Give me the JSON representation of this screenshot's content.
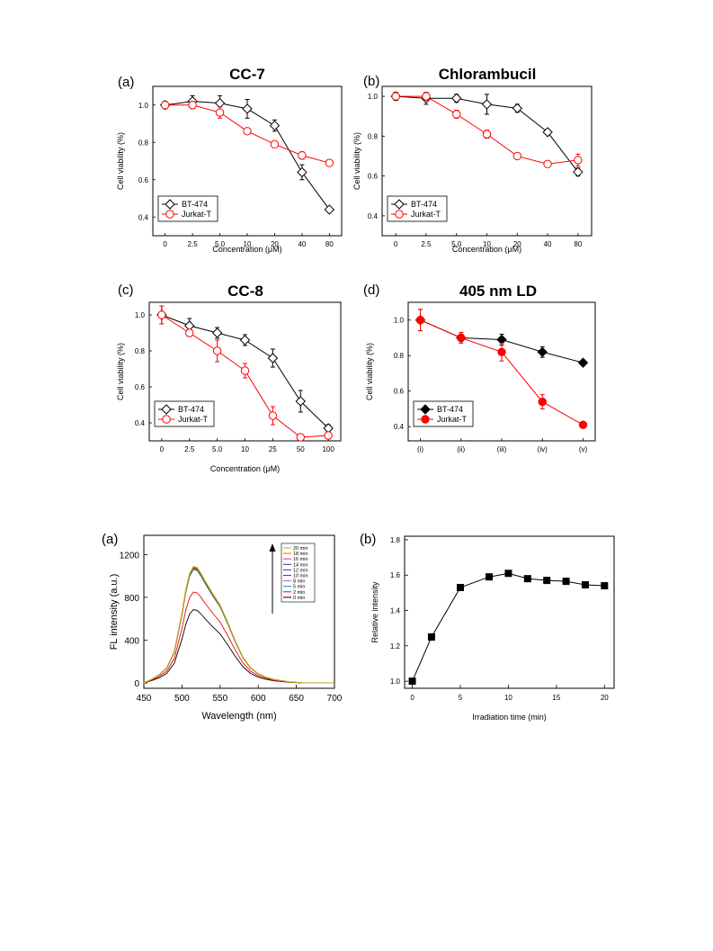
{
  "chart_data": [
    {
      "id": "cc7",
      "panel_label": "(a)",
      "type": "line",
      "title": "CC-7",
      "xlabel": "Concentration (μM)",
      "ylabel": "Cell viability (%)",
      "categories": [
        "0",
        "2.5",
        "5.0",
        "10",
        "20",
        "40",
        "80"
      ],
      "ylim": [
        0.3,
        1.1
      ],
      "yticks": [
        "0.4",
        "0.6",
        "0.8",
        "1.0"
      ],
      "legend_position": "bottom-left",
      "series": [
        {
          "name": "BT-474",
          "values": [
            1.0,
            1.02,
            1.01,
            0.98,
            0.89,
            0.64,
            0.44
          ],
          "errors": [
            0.02,
            0.03,
            0.04,
            0.05,
            0.03,
            0.04,
            0.01
          ],
          "color": "#000000",
          "marker": "diamond-open"
        },
        {
          "name": "Jurkat-T",
          "values": [
            1.0,
            1.0,
            0.96,
            0.86,
            0.79,
            0.73,
            0.69
          ],
          "errors": [
            0.02,
            0.02,
            0.03,
            0.01,
            0.01,
            0.02,
            0.01
          ],
          "color": "#ff0000",
          "marker": "circle-open"
        }
      ]
    },
    {
      "id": "chlorambucil",
      "panel_label": "(b)",
      "type": "line",
      "title": "Chlorambucil",
      "xlabel": "Concentration (μM)",
      "ylabel": "Cell viability (%)",
      "categories": [
        "0",
        "2.5",
        "5.0",
        "10",
        "20",
        "40",
        "80"
      ],
      "ylim": [
        0.3,
        1.05
      ],
      "yticks": [
        "0.4",
        "0.6",
        "0.8",
        "1.0"
      ],
      "legend_position": "bottom-left",
      "series": [
        {
          "name": "BT-474",
          "values": [
            1.0,
            0.99,
            0.99,
            0.96,
            0.94,
            0.82,
            0.62
          ],
          "errors": [
            0.02,
            0.03,
            0.02,
            0.05,
            0.02,
            0.01,
            0.02
          ],
          "color": "#000000",
          "marker": "diamond-open"
        },
        {
          "name": "Jurkat-T",
          "values": [
            1.0,
            1.0,
            0.91,
            0.81,
            0.7,
            0.66,
            0.68
          ],
          "errors": [
            0.01,
            0.02,
            0.02,
            0.02,
            0.01,
            0.01,
            0.03
          ],
          "color": "#ff0000",
          "marker": "circle-open"
        }
      ]
    },
    {
      "id": "cc8",
      "panel_label": "(c)",
      "type": "line",
      "title": "CC-8",
      "xlabel": "Concentration (μM)",
      "ylabel": "Cell viability (%)",
      "categories": [
        "0",
        "2.5",
        "5.0",
        "10",
        "25",
        "50",
        "100"
      ],
      "ylim": [
        0.3,
        1.07
      ],
      "yticks": [
        "0.4",
        "0.6",
        "0.8",
        "1.0"
      ],
      "legend_position": "bottom-left",
      "series": [
        {
          "name": "BT-474",
          "values": [
            1.0,
            0.94,
            0.9,
            0.86,
            0.76,
            0.52,
            0.37
          ],
          "errors": [
            0.05,
            0.04,
            0.03,
            0.03,
            0.05,
            0.06,
            0.02
          ],
          "color": "#000000",
          "marker": "diamond-open"
        },
        {
          "name": "Jurkat-T",
          "values": [
            1.0,
            0.9,
            0.8,
            0.69,
            0.44,
            0.32,
            0.33
          ],
          "errors": [
            0.05,
            0.02,
            0.06,
            0.04,
            0.05,
            0.01,
            0.02
          ],
          "color": "#ff0000",
          "marker": "circle-open"
        }
      ]
    },
    {
      "id": "ld405",
      "panel_label": "(d)",
      "type": "line",
      "title": "405 nm LD",
      "xlabel": "",
      "ylabel": "Cell viability (%)",
      "categories": [
        "(i)",
        "(ii)",
        "(iii)",
        "(iv)",
        "(v)"
      ],
      "ylim": [
        0.32,
        1.1
      ],
      "yticks": [
        "0.4",
        "0.6",
        "0.8",
        "1.0"
      ],
      "legend_position": "bottom-left",
      "series": [
        {
          "name": "BT-474",
          "values": [
            1.0,
            0.9,
            0.89,
            0.82,
            0.76
          ],
          "errors": [
            0.06,
            0.02,
            0.03,
            0.03,
            0.01
          ],
          "color": "#000000",
          "marker": "diamond-filled"
        },
        {
          "name": "Jurkat-T",
          "values": [
            1.0,
            0.9,
            0.82,
            0.54,
            0.41
          ],
          "errors": [
            0.06,
            0.03,
            0.05,
            0.04,
            0.01
          ],
          "color": "#ff0000",
          "marker": "circle-filled"
        }
      ]
    },
    {
      "id": "fl_spectra",
      "panel_label": "(a)",
      "type": "line",
      "title": "",
      "xlabel": "Wavelength (nm)",
      "ylabel": "FL intensity (a.u.)",
      "xlim": [
        450,
        700
      ],
      "ylim": [
        -50,
        1380
      ],
      "xticks": [
        "450",
        "500",
        "550",
        "600",
        "650",
        "700"
      ],
      "yticks": [
        "0",
        "400",
        "800",
        "1200"
      ],
      "legend_position": "top-right",
      "curve_shape": {
        "x": [
          450,
          460,
          470,
          480,
          490,
          500,
          505,
          510,
          515,
          520,
          525,
          530,
          540,
          550,
          560,
          570,
          580,
          590,
          600,
          610,
          620,
          630,
          640,
          650,
          660,
          680,
          700
        ],
        "profile": [
          0.0,
          0.03,
          0.07,
          0.13,
          0.27,
          0.6,
          0.8,
          0.94,
          1.0,
          0.99,
          0.94,
          0.88,
          0.77,
          0.67,
          0.52,
          0.36,
          0.22,
          0.13,
          0.08,
          0.05,
          0.03,
          0.02,
          0.01,
          0.005,
          0.0,
          0.0,
          0.0
        ]
      },
      "series": [
        {
          "name": "20 min",
          "peak": 1090,
          "color": "#b5b500"
        },
        {
          "name": "18 min",
          "peak": 1080,
          "color": "#ff6600"
        },
        {
          "name": "16 min",
          "peak": 1085,
          "color": "#cc3399"
        },
        {
          "name": "14 min",
          "peak": 1075,
          "color": "#333399"
        },
        {
          "name": "12 min",
          "peak": 1080,
          "color": "#3333cc"
        },
        {
          "name": "10 min",
          "peak": 1070,
          "color": "#008000"
        },
        {
          "name": "8 min",
          "peak": 1065,
          "color": "#9966cc"
        },
        {
          "name": "5 min",
          "peak": 1060,
          "color": "#0099cc"
        },
        {
          "name": "2 min",
          "peak": 850,
          "color": "#ff0000"
        },
        {
          "name": "0 min",
          "peak": 685,
          "color": "#000000"
        }
      ]
    },
    {
      "id": "relative_intensity",
      "panel_label": "(b)",
      "type": "line",
      "title": "",
      "xlabel": "Irradiation time (min)",
      "ylabel": "Relative intensity",
      "xlim": [
        -0.8,
        21
      ],
      "ylim": [
        0.96,
        1.82
      ],
      "xticks": [
        "0",
        "5",
        "10",
        "15",
        "20"
      ],
      "yticks": [
        "1.0",
        "1.2",
        "1.4",
        "1.6",
        "1.8"
      ],
      "series": [
        {
          "name": "",
          "x": [
            0,
            2,
            5,
            8,
            10,
            12,
            14,
            16,
            18,
            20
          ],
          "values": [
            1.0,
            1.25,
            1.53,
            1.59,
            1.61,
            1.58,
            1.57,
            1.565,
            1.545,
            1.54
          ],
          "color": "#000000",
          "marker": "square-filled"
        }
      ]
    }
  ]
}
